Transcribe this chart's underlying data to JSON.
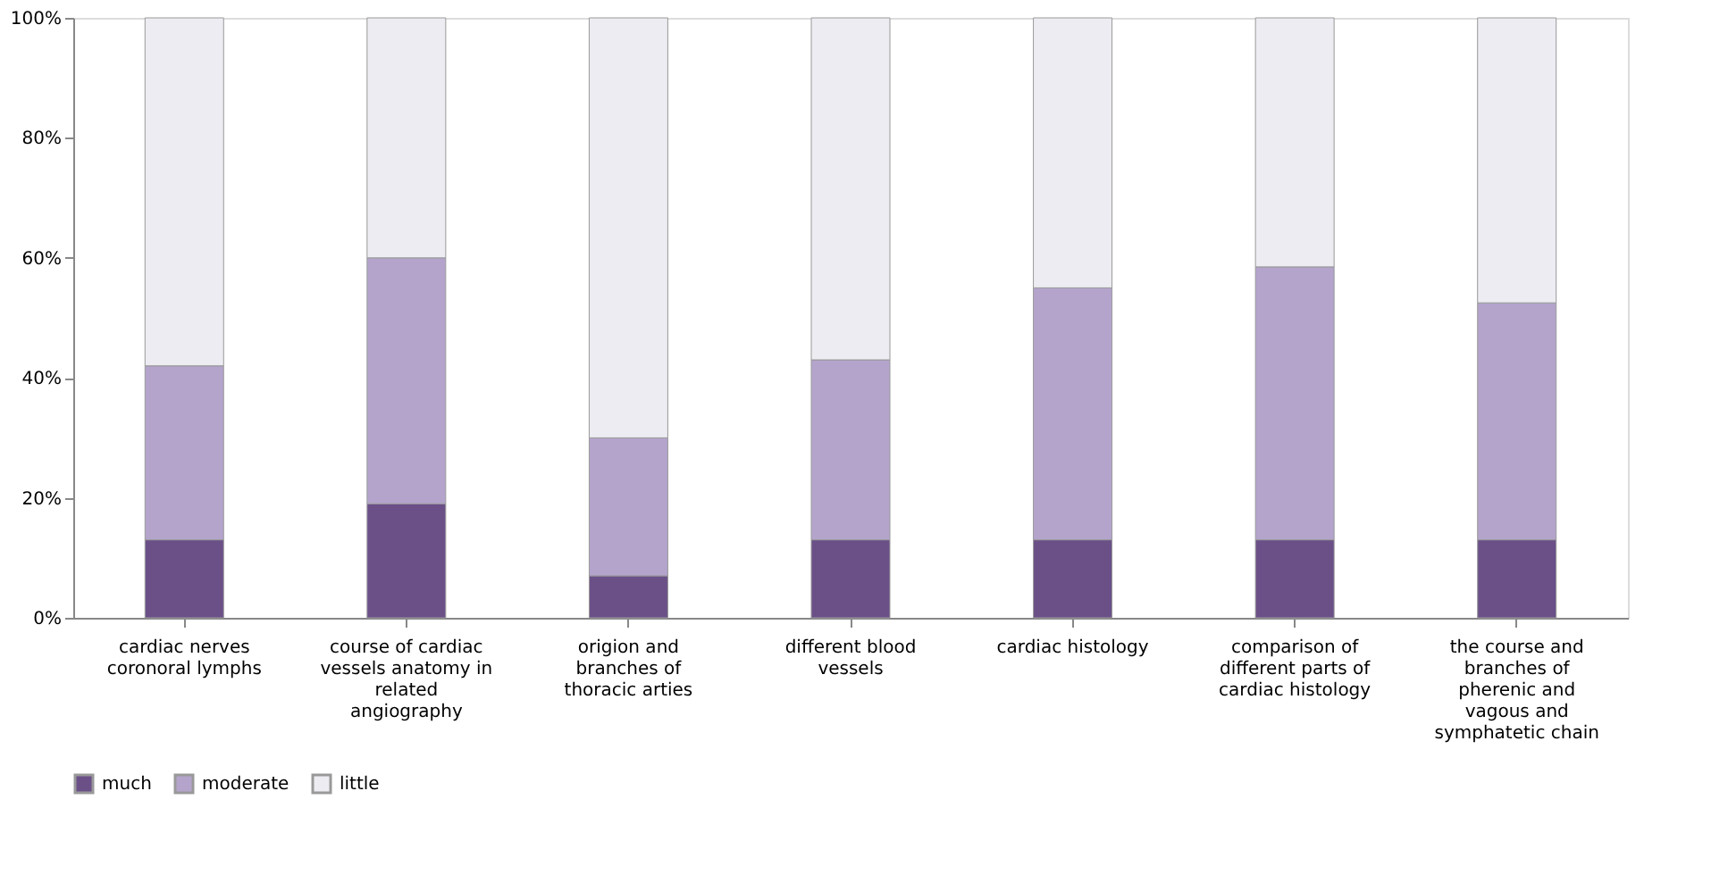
{
  "chart_data": {
    "type": "bar",
    "stacked": true,
    "categories": [
      "cardiac nerves coronoral lymphs",
      "course of cardiac vessels anatomy in related angiography",
      "origion and branches of thoracic arties",
      "different blood vessels",
      "cardiac histology",
      "comparison of different parts of cardiac histology",
      "the course and branches of pherenic and vagous and symphatetic chain"
    ],
    "series": [
      {
        "name": "much",
        "color": "#6b5088",
        "values": [
          13,
          19,
          7,
          13,
          13,
          13,
          13
        ]
      },
      {
        "name": "moderate",
        "color": "#b4a4cc",
        "values": [
          29,
          41,
          23,
          30,
          42,
          45.5,
          39.5
        ]
      },
      {
        "name": "little",
        "color": "#ececf2",
        "values": [
          58,
          40,
          70,
          57,
          45,
          41.5,
          47.5
        ]
      }
    ],
    "ylim": [
      0,
      100
    ],
    "yticks": [
      {
        "value": 0,
        "label": "0%"
      },
      {
        "value": 20,
        "label": "20%"
      },
      {
        "value": 40,
        "label": "40%"
      },
      {
        "value": 60,
        "label": "60%"
      },
      {
        "value": 80,
        "label": "80%"
      },
      {
        "value": 100,
        "label": "100%"
      }
    ],
    "grid": false,
    "legend": "bottom"
  }
}
